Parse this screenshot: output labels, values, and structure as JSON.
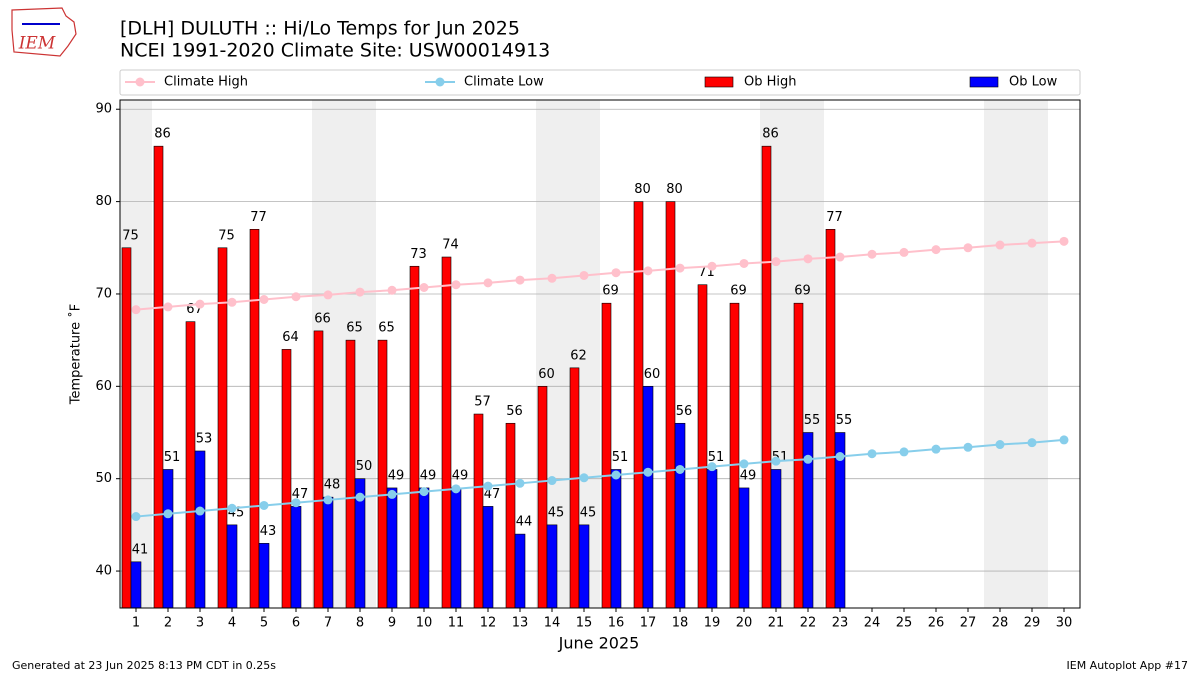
{
  "chart_data": {
    "type": "bar",
    "title": "[DLH] DULUTH :: Hi/Lo Temps for Jun 2025",
    "subtitle": "NCEI 1991-2020 Climate Site: USW00014913",
    "x_label": "June 2025",
    "y_label": "Temperature ˚F",
    "logo_text": "IEM",
    "footer_left": "Generated at 23 Jun 2025 8:13 PM CDT in 0.25s",
    "footer_right": "IEM Autoplot App #17",
    "categories": [
      "1",
      "2",
      "3",
      "4",
      "5",
      "6",
      "7",
      "8",
      "9",
      "10",
      "11",
      "12",
      "13",
      "14",
      "15",
      "16",
      "17",
      "18",
      "19",
      "20",
      "21",
      "22",
      "23",
      "24",
      "25",
      "26",
      "27",
      "28",
      "29",
      "30"
    ],
    "series": [
      {
        "name": "Climate High",
        "type": "line",
        "color": "#ffc0cb",
        "values": [
          68.3,
          68.6,
          68.9,
          69.1,
          69.4,
          69.7,
          69.9,
          70.2,
          70.4,
          70.7,
          71.0,
          71.2,
          71.5,
          71.7,
          72.0,
          72.3,
          72.5,
          72.8,
          73.0,
          73.3,
          73.5,
          73.8,
          74.0,
          74.3,
          74.5,
          74.8,
          75.0,
          75.3,
          75.5,
          75.7
        ]
      },
      {
        "name": "Climate Low",
        "type": "line",
        "color": "#87ceeb",
        "values": [
          45.9,
          46.2,
          46.5,
          46.8,
          47.1,
          47.4,
          47.7,
          48.0,
          48.3,
          48.6,
          48.9,
          49.2,
          49.5,
          49.8,
          50.1,
          50.4,
          50.7,
          51.0,
          51.3,
          51.6,
          51.9,
          52.1,
          52.4,
          52.7,
          52.9,
          53.2,
          53.4,
          53.7,
          53.9,
          54.2
        ]
      },
      {
        "name": "Ob High",
        "type": "bar",
        "color": "#ff0000",
        "values": [
          75,
          86,
          67,
          75,
          77,
          64,
          66,
          65,
          65,
          73,
          74,
          57,
          56,
          60,
          62,
          69,
          80,
          80,
          71,
          69,
          86,
          69,
          77,
          null,
          null,
          null,
          null,
          null,
          null,
          null
        ]
      },
      {
        "name": "Ob Low",
        "type": "bar",
        "color": "#0000ff",
        "values": [
          41,
          51,
          53,
          45,
          43,
          47,
          48,
          50,
          49,
          49,
          49,
          47,
          44,
          45,
          45,
          51,
          60,
          56,
          51,
          49,
          51,
          55,
          55,
          null,
          null,
          null,
          null,
          null,
          null,
          null
        ]
      }
    ],
    "ylim": [
      36,
      91
    ],
    "yticks": [
      40,
      50,
      60,
      70,
      80,
      90
    ],
    "grid": true
  }
}
